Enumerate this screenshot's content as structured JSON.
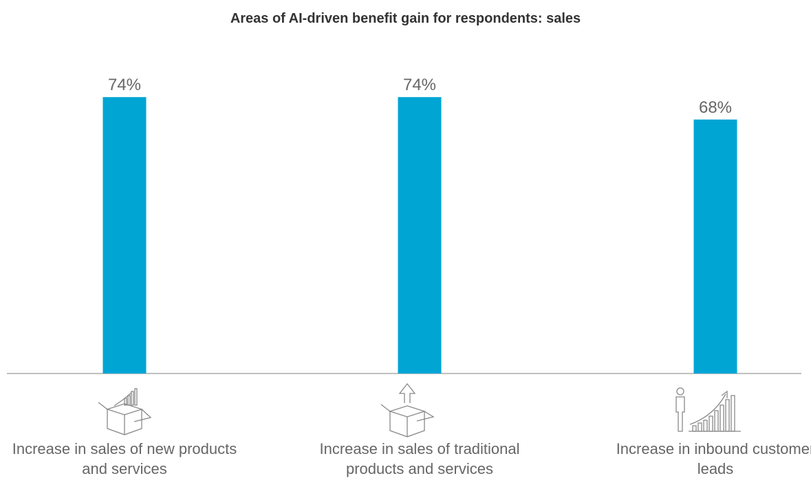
{
  "chart_data": {
    "type": "bar",
    "title": "Areas of AI-driven benefit gain for respondents: sales",
    "categories": [
      "Increase in sales of new products and services",
      "Increase in sales of traditional products and services",
      "Increase in inbound customer leads"
    ],
    "values": [
      74,
      74,
      68
    ],
    "value_labels": [
      "74%",
      "74%",
      "68%"
    ],
    "color": "#00a5d4"
  }
}
